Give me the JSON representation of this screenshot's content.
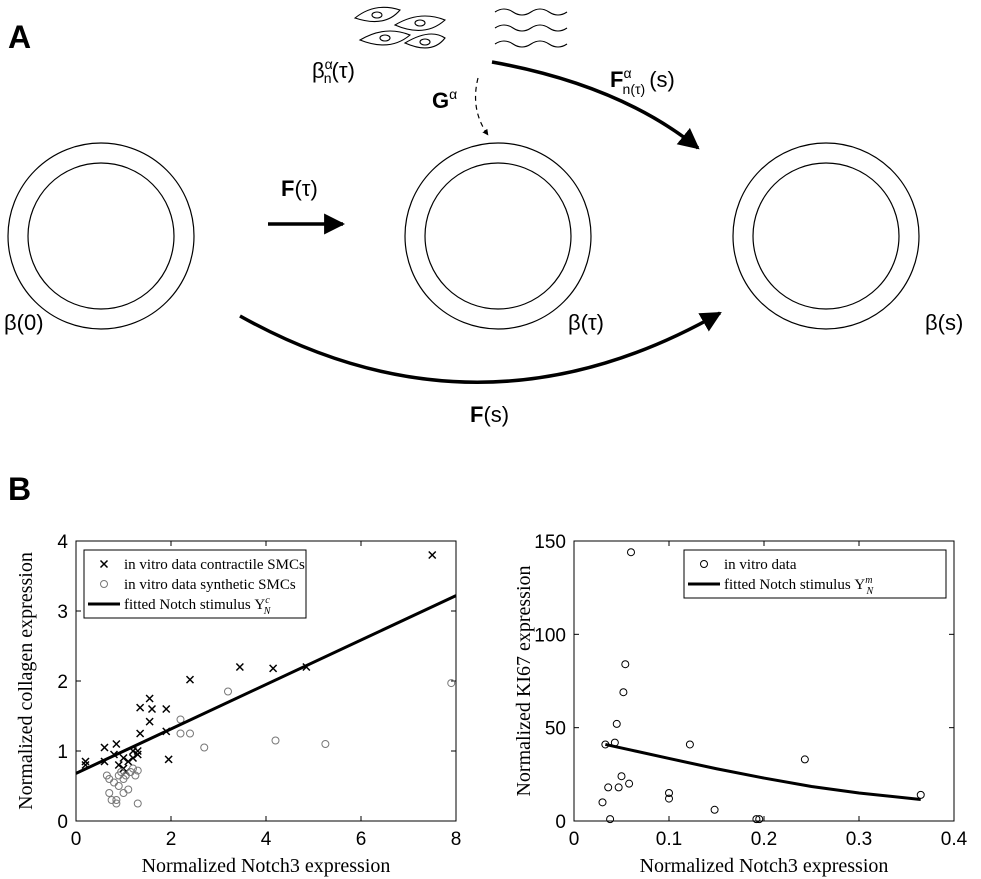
{
  "panel_a": {
    "label": "A",
    "beta0": "β(0)",
    "beta_tau": "β(τ)",
    "beta_s": "β(s)",
    "f_tau": {
      "main": "F",
      "arg": "(τ)"
    },
    "f_s": {
      "main": "F",
      "arg": "(s)"
    },
    "g": {
      "main": "G",
      "sup": "α"
    },
    "beta_n": {
      "main": "β",
      "sup": "α",
      "sub": "n",
      "arg": "(τ)"
    },
    "f_n": {
      "main": "F",
      "sup": "α",
      "sub": "n(τ)",
      "arg": "(s)"
    }
  },
  "panel_b": {
    "label": "B"
  },
  "chart_data": [
    {
      "type": "scatter",
      "xlabel": "Normalized Notch3 expression",
      "ylabel": "Normalized collagen expression",
      "xlim": [
        0,
        8
      ],
      "ylim": [
        0,
        4
      ],
      "xticks": [
        0,
        2,
        4,
        6,
        8
      ],
      "yticks": [
        0,
        1,
        2,
        3,
        4
      ],
      "legend": "upper left",
      "series": [
        {
          "name": "in vitro data contractile SMCs",
          "marker": "x",
          "color": "#000000",
          "x": [
            0.2,
            0.2,
            0.6,
            0.6,
            0.8,
            0.85,
            0.9,
            1.0,
            1.0,
            1.05,
            1.1,
            1.2,
            1.2,
            1.3,
            1.3,
            1.35,
            1.35,
            1.55,
            1.6,
            1.55,
            1.9,
            1.9,
            1.95,
            2.4,
            3.45,
            4.15,
            4.85,
            7.5
          ],
          "values": [
            0.85,
            0.8,
            1.05,
            0.85,
            0.95,
            1.1,
            0.8,
            0.75,
            0.9,
            0.7,
            0.85,
            1.0,
            0.9,
            1.0,
            0.95,
            1.25,
            1.62,
            1.75,
            1.6,
            1.42,
            1.6,
            1.28,
            0.88,
            2.02,
            2.2,
            2.18,
            2.2,
            3.8
          ]
        },
        {
          "name": "in vitro data synthetic SMCs",
          "marker": "o",
          "color": "#777777",
          "x": [
            0.65,
            0.7,
            0.7,
            0.75,
            0.8,
            0.85,
            0.85,
            0.9,
            0.9,
            0.95,
            1.0,
            1.0,
            1.05,
            1.1,
            1.15,
            1.2,
            1.25,
            1.3,
            1.3,
            2.2,
            2.2,
            2.4,
            2.7,
            3.2,
            4.2,
            5.25,
            7.9
          ],
          "values": [
            0.65,
            0.6,
            0.4,
            0.3,
            0.55,
            0.3,
            0.25,
            0.65,
            0.5,
            0.7,
            0.6,
            0.4,
            0.65,
            0.45,
            0.7,
            0.75,
            0.65,
            0.72,
            0.25,
            1.45,
            1.25,
            1.25,
            1.05,
            1.85,
            1.15,
            1.1,
            1.97
          ]
        },
        {
          "name": "fitted Notch stimulus Υ",
          "name_sub": "N",
          "name_sup": "c",
          "marker": "line",
          "color": "#000000",
          "x": [
            0,
            8
          ],
          "values": [
            0.68,
            3.22
          ]
        }
      ]
    },
    {
      "type": "scatter",
      "xlabel": "Normalized Notch3 expression",
      "ylabel": "Normalized KI67 expression",
      "xlim": [
        0,
        0.4
      ],
      "ylim": [
        0,
        150
      ],
      "xticks": [
        0,
        0.1,
        0.2,
        0.3,
        0.4
      ],
      "yticks": [
        0,
        50,
        100,
        150
      ],
      "legend": "upper right",
      "series": [
        {
          "name": "in vitro data",
          "marker": "o",
          "color": "#000000",
          "x": [
            0.03,
            0.033,
            0.036,
            0.038,
            0.043,
            0.045,
            0.047,
            0.05,
            0.052,
            0.054,
            0.058,
            0.06,
            0.1,
            0.1,
            0.122,
            0.148,
            0.192,
            0.195,
            0.243,
            0.365
          ],
          "values": [
            10,
            41,
            18,
            1,
            42,
            52,
            18,
            24,
            69,
            84,
            20,
            144,
            12,
            15,
            41,
            6,
            1,
            1,
            33,
            14
          ]
        },
        {
          "name": "fitted Notch stimulus Υ",
          "name_sub": "N",
          "name_sup": "m",
          "marker": "line",
          "color": "#000000",
          "x": [
            0.033,
            0.06,
            0.1,
            0.15,
            0.2,
            0.25,
            0.3,
            0.365
          ],
          "values": [
            41,
            38,
            33.5,
            28,
            23,
            18.5,
            15,
            11.5
          ]
        }
      ]
    }
  ]
}
